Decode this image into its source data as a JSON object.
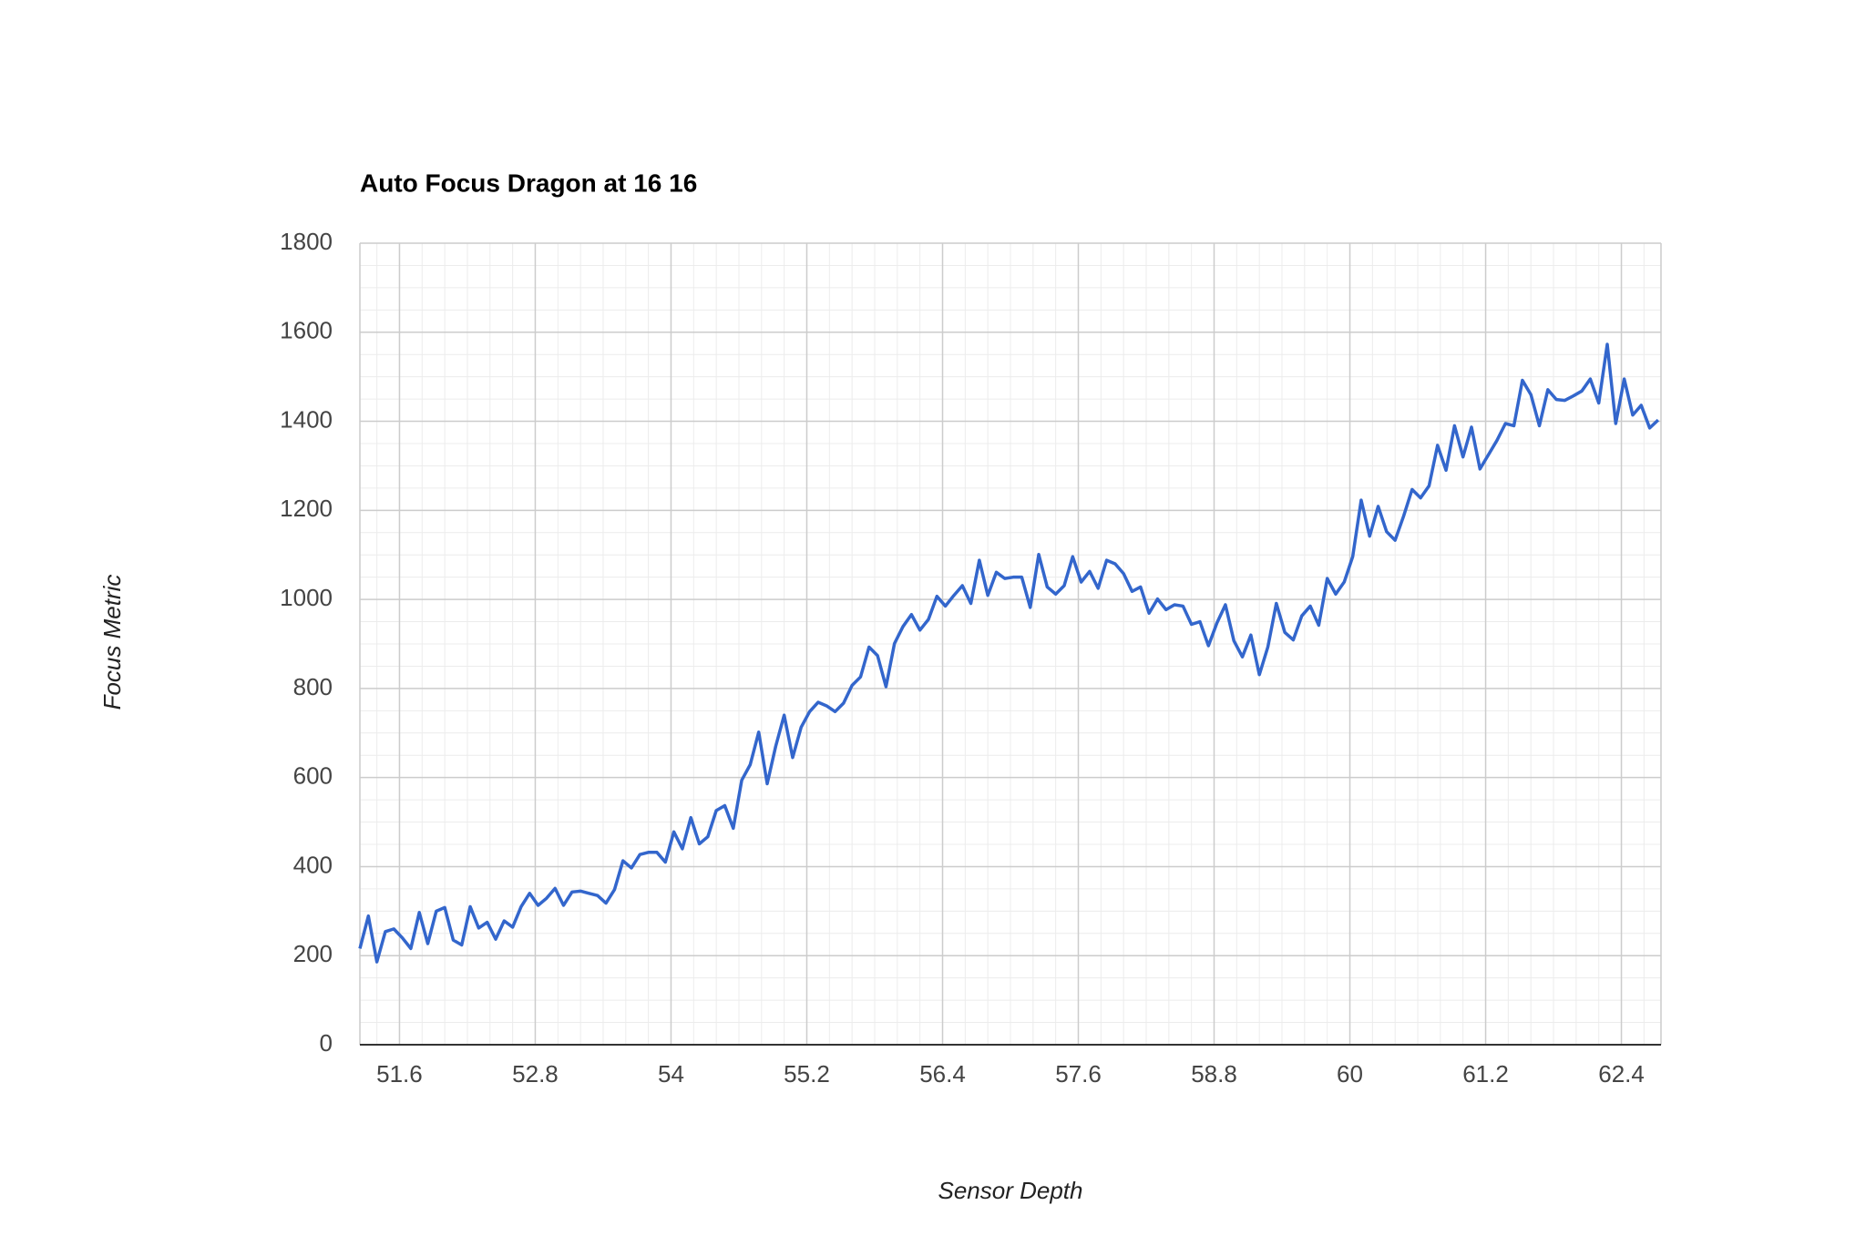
{
  "chart_data": {
    "type": "line",
    "title": "Auto Focus Dragon at 16 16",
    "x_label": "Sensor Depth",
    "y_label": "Focus Metric",
    "x": [
      51.25,
      51.325,
      51.4,
      51.475,
      51.55,
      51.625,
      51.7,
      51.775,
      51.85,
      51.925,
      52,
      52.075,
      52.15,
      52.225,
      52.3,
      52.375,
      52.45,
      52.525,
      52.6,
      52.675,
      52.75,
      52.825,
      52.9,
      52.975,
      53.05,
      53.125,
      53.2,
      53.275,
      53.35,
      53.425,
      53.5,
      53.575,
      53.65,
      53.725,
      53.8,
      53.875,
      53.95,
      54.025,
      54.1,
      54.175,
      54.25,
      54.325,
      54.4,
      54.475,
      54.55,
      54.625,
      54.7,
      54.775,
      54.85,
      54.925,
      55,
      55.075,
      55.15,
      55.225,
      55.3,
      55.375,
      55.45,
      55.525,
      55.6,
      55.675,
      55.75,
      55.825,
      55.9,
      55.975,
      56.05,
      56.125,
      56.2,
      56.275,
      56.35,
      56.425,
      56.5,
      56.575,
      56.65,
      56.725,
      56.8,
      56.875,
      56.95,
      57.025,
      57.1,
      57.175,
      57.25,
      57.325,
      57.4,
      57.475,
      57.55,
      57.625,
      57.7,
      57.775,
      57.85,
      57.925,
      58,
      58.075,
      58.15,
      58.225,
      58.3,
      58.375,
      58.45,
      58.525,
      58.6,
      58.675,
      58.75,
      58.825,
      58.9,
      58.975,
      59.05,
      59.125,
      59.2,
      59.275,
      59.35,
      59.425,
      59.5,
      59.575,
      59.65,
      59.725,
      59.8,
      59.875,
      59.95,
      60.025,
      60.1,
      60.175,
      60.25,
      60.325,
      60.4,
      60.475,
      60.55,
      60.625,
      60.7,
      60.775,
      60.85,
      60.925,
      61,
      61.075,
      61.15,
      61.225,
      61.3,
      61.375,
      61.45,
      61.525,
      61.6,
      61.675,
      61.75,
      61.825,
      61.9,
      61.975,
      62.05,
      62.125,
      62.2,
      62.275,
      62.35,
      62.425,
      62.5,
      62.575,
      62.65,
      62.725
    ],
    "series": [
      {
        "name": "Focus Metric",
        "color": "#3366cc",
        "values": [
          216,
          289,
          186,
          254,
          260,
          240,
          216,
          297,
          227,
          300,
          308,
          235,
          224,
          310,
          262,
          275,
          237,
          278,
          264,
          310,
          340,
          313,
          329,
          351,
          313,
          343,
          345,
          340,
          335,
          318,
          348,
          413,
          397,
          427,
          432,
          432,
          410,
          478,
          440,
          510,
          451,
          467,
          526,
          537,
          486,
          594,
          629,
          702,
          586,
          670,
          740,
          645,
          713,
          748,
          769,
          761,
          748,
          767,
          807,
          826,
          893,
          874,
          804,
          901,
          939,
          966,
          931,
          955,
          1007,
          985,
          1009,
          1031,
          991,
          1088,
          1009,
          1061,
          1047,
          1050,
          1050,
          982,
          1101,
          1028,
          1012,
          1031,
          1096,
          1039,
          1063,
          1025,
          1088,
          1080,
          1058,
          1018,
          1028,
          969,
          1001,
          977,
          988,
          985,
          944,
          950,
          896,
          947,
          988,
          907,
          871,
          920,
          831,
          893,
          991,
          926,
          909,
          963,
          985,
          942,
          1047,
          1012,
          1039,
          1096,
          1223,
          1142,
          1209,
          1152,
          1133,
          1187,
          1247,
          1228,
          1255,
          1346,
          1290,
          1390,
          1320,
          1387,
          1293,
          1325,
          1357,
          1395,
          1390,
          1492,
          1460,
          1390,
          1471,
          1449,
          1447,
          1457,
          1468,
          1495,
          1441,
          1573,
          1395,
          1495,
          1414,
          1436,
          1385,
          1403
        ]
      }
    ],
    "xlim": [
      51.25,
      62.75
    ],
    "xticks": [
      51.6,
      52.8,
      54,
      55.2,
      56.4,
      57.6,
      58.8,
      60,
      61.2,
      62.4
    ],
    "ylim": [
      0,
      1800
    ],
    "yticks": [
      0,
      200,
      400,
      600,
      800,
      1000,
      1200,
      1400,
      1600,
      1800
    ],
    "grid": true,
    "minor_grid": true
  }
}
